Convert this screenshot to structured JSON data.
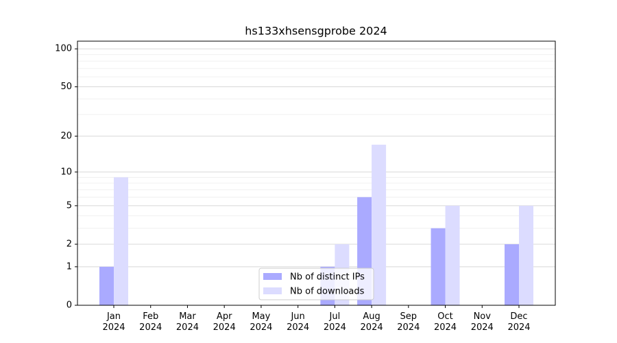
{
  "chart_data": {
    "type": "bar",
    "title": "hs133xhsensgprobe 2024",
    "categories": [
      "Jan\n2024",
      "Feb\n2024",
      "Mar\n2024",
      "Apr\n2024",
      "May\n2024",
      "Jun\n2024",
      "Jul\n2024",
      "Aug\n2024",
      "Sep\n2024",
      "Oct\n2024",
      "Nov\n2024",
      "Dec\n2024"
    ],
    "series": [
      {
        "name": "Nb of distinct IPs",
        "color": "#aaaaff",
        "values": [
          1,
          0,
          0,
          0,
          0,
          0,
          1,
          6,
          0,
          3,
          0,
          2
        ]
      },
      {
        "name": "Nb of downloads",
        "color": "#dcdcff",
        "values": [
          9,
          0,
          0,
          0,
          0,
          0,
          2,
          17,
          0,
          5,
          0,
          5
        ]
      }
    ],
    "y_scale": "log1p",
    "ylim": [
      0,
      115
    ],
    "yticks": [
      0,
      1,
      2,
      5,
      10,
      20,
      50,
      100
    ],
    "minor_yticks": [
      3,
      4,
      6,
      7,
      8,
      9,
      30,
      40,
      60,
      70,
      80,
      90
    ],
    "grid": true,
    "legend": "lower center"
  }
}
